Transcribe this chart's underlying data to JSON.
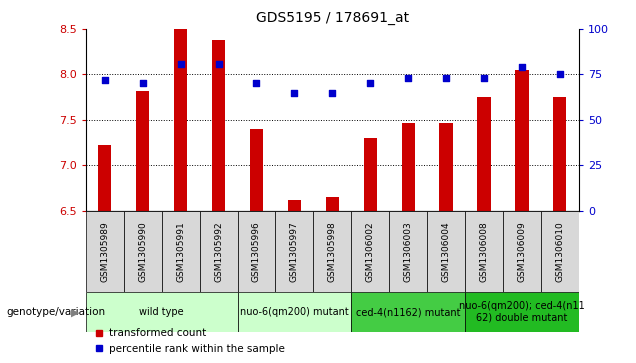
{
  "title": "GDS5195 / 178691_at",
  "samples": [
    "GSM1305989",
    "GSM1305990",
    "GSM1305991",
    "GSM1305992",
    "GSM1305996",
    "GSM1305997",
    "GSM1305998",
    "GSM1306002",
    "GSM1306003",
    "GSM1306004",
    "GSM1306008",
    "GSM1306009",
    "GSM1306010"
  ],
  "bar_values": [
    7.22,
    7.82,
    8.5,
    8.38,
    7.4,
    6.62,
    6.65,
    7.3,
    7.47,
    7.47,
    7.75,
    8.05,
    7.75
  ],
  "percentile_values": [
    72,
    70,
    81,
    81,
    70,
    65,
    65,
    70,
    73,
    73,
    73,
    79,
    75
  ],
  "ylim_left": [
    6.5,
    8.5
  ],
  "ylim_right": [
    0,
    100
  ],
  "yticks_left": [
    6.5,
    7.0,
    7.5,
    8.0,
    8.5
  ],
  "yticks_right": [
    0,
    25,
    50,
    75,
    100
  ],
  "bar_color": "#cc0000",
  "dot_color": "#0000cc",
  "bar_bottom": 6.5,
  "groups": [
    {
      "label": "wild type",
      "start": 0,
      "end": 4,
      "color": "#ccffcc"
    },
    {
      "label": "nuo-6(qm200) mutant",
      "start": 4,
      "end": 7,
      "color": "#ccffcc"
    },
    {
      "label": "ced-4(n1162) mutant",
      "start": 7,
      "end": 10,
      "color": "#44cc44"
    },
    {
      "label": "nuo-6(qm200); ced-4(n11\n62) double mutant",
      "start": 10,
      "end": 13,
      "color": "#22bb22"
    }
  ],
  "legend_bar_label": "transformed count",
  "legend_dot_label": "percentile rank within the sample",
  "genotype_label": "genotype/variation",
  "bar_color_tick": "#cc0000",
  "dot_color_tick": "#0000cc"
}
